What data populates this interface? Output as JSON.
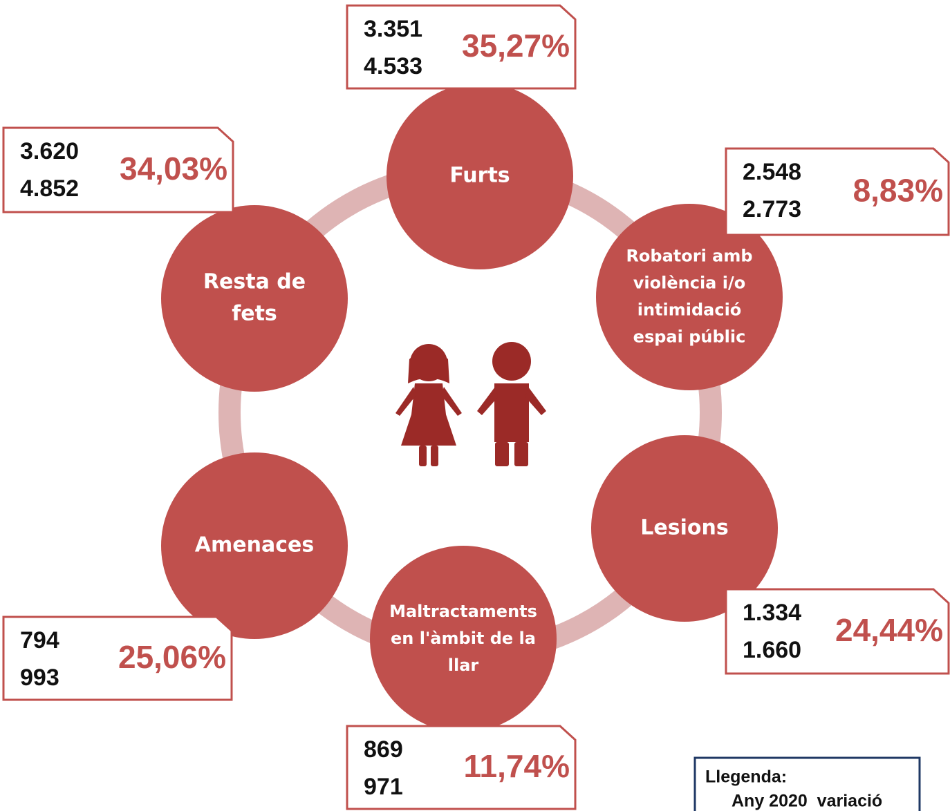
{
  "nodes": [
    {
      "label": [
        "Furts"
      ],
      "values": [
        "3.351",
        "4.533"
      ],
      "variation": "35,27%"
    },
    {
      "label": [
        "Robatori amb",
        "violència i/o",
        "intimidació",
        "espai públic"
      ],
      "values": [
        "2.548",
        "2.773"
      ],
      "variation": "8,83%"
    },
    {
      "label": [
        "Lesions"
      ],
      "values": [
        "1.334",
        "1.660"
      ],
      "variation": "24,44%"
    },
    {
      "label": [
        "Maltractaments",
        "en l'àmbit de la",
        "llar"
      ],
      "values": [
        "869",
        "971"
      ],
      "variation": "11,74%"
    },
    {
      "label": [
        "Amenaces"
      ],
      "values": [
        "794",
        "993"
      ],
      "variation": "25,06%"
    },
    {
      "label": [
        "Resta de",
        "fets"
      ],
      "values": [
        "3.620",
        "4.852"
      ],
      "variation": "34,03%"
    }
  ],
  "legend": {
    "title": "Llegenda:",
    "text": "Any 2020  variació"
  }
}
